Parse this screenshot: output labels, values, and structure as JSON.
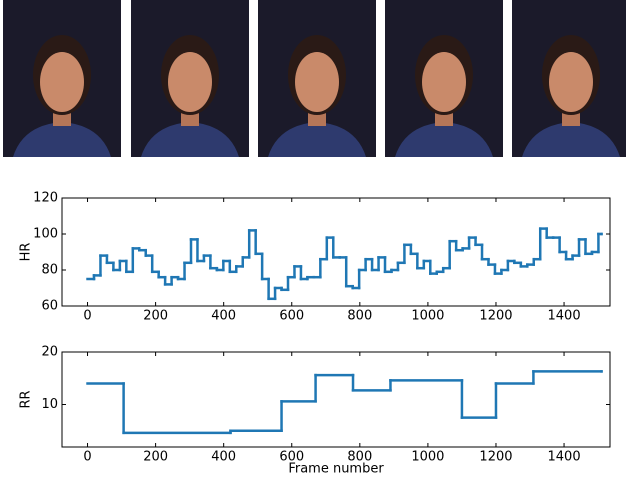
{
  "chart_data": [
    {
      "type": "line",
      "step": "post",
      "ylabel": "HR",
      "x": [
        0,
        19,
        38,
        57,
        76,
        95,
        114,
        133,
        152,
        171,
        190,
        209,
        228,
        247,
        266,
        285,
        304,
        323,
        342,
        361,
        380,
        399,
        418,
        437,
        456,
        475,
        494,
        513,
        532,
        551,
        570,
        589,
        608,
        627,
        646,
        665,
        684,
        703,
        722,
        741,
        760,
        779,
        798,
        817,
        836,
        855,
        874,
        893,
        912,
        931,
        950,
        969,
        988,
        1007,
        1026,
        1045,
        1064,
        1083,
        1102,
        1121,
        1140,
        1159,
        1178,
        1197,
        1216,
        1235,
        1254,
        1273,
        1292,
        1311,
        1330,
        1349,
        1368,
        1387,
        1406,
        1425,
        1444,
        1463,
        1482,
        1501,
        1510
      ],
      "values": [
        75,
        77,
        88,
        84,
        80,
        85,
        79,
        92,
        91,
        88,
        79,
        76,
        72,
        76,
        75,
        84,
        97,
        85,
        88,
        81,
        80,
        85,
        79,
        82,
        87,
        102,
        89,
        75,
        64,
        70,
        69,
        76,
        82,
        75,
        76,
        76,
        86,
        98,
        87,
        87,
        71,
        70,
        80,
        86,
        80,
        87,
        79,
        80,
        84,
        94,
        89,
        81,
        85,
        78,
        79,
        81,
        96,
        91,
        92,
        98,
        94,
        86,
        83,
        78,
        80,
        85,
        84,
        82,
        83,
        86,
        103,
        98,
        98,
        90,
        86,
        88,
        97,
        89,
        90,
        100,
        100
      ],
      "color": "#1f77b4",
      "xlim": [
        -75,
        1535
      ],
      "ylim": [
        60,
        120
      ],
      "xticks": [
        0,
        200,
        400,
        600,
        800,
        1000,
        1200,
        1400
      ],
      "yticks": [
        60,
        80,
        100,
        120
      ]
    },
    {
      "type": "line",
      "step": "post",
      "ylabel": "RR",
      "xlabel": "Frame number",
      "x": [
        0,
        106,
        420,
        570,
        670,
        780,
        890,
        1100,
        1200,
        1310,
        1510
      ],
      "values": [
        14,
        4.6,
        5,
        10.6,
        15.6,
        12.7,
        14.6,
        7.5,
        14,
        16.3,
        16.3
      ],
      "color": "#1f77b4",
      "xlim": [
        -75,
        1535
      ],
      "ylim": [
        1.9,
        20
      ],
      "xticks": [
        0,
        200,
        400,
        600,
        800,
        1000,
        1200,
        1400
      ],
      "yticks": [
        10,
        20
      ]
    }
  ]
}
